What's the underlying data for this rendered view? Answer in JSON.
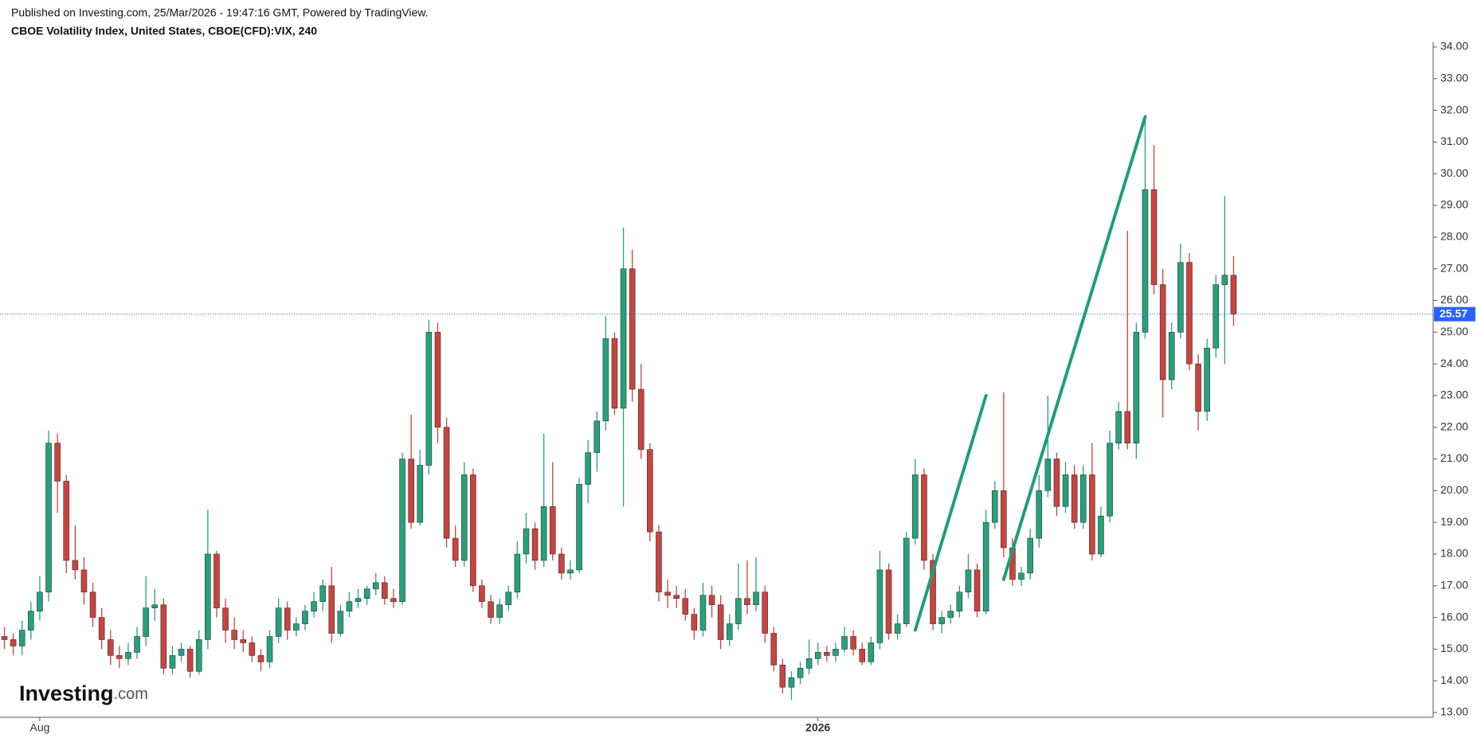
{
  "header": {
    "published": "Published on Investing.com, 25/Mar/2026 - 19:47:16 GMT, Powered by TradingView.",
    "symbol": "CBOE Volatility Index, United States, CBOE(CFD):VIX, 240"
  },
  "logo": "Investing",
  "logo_suffix": ".com",
  "chart_data": {
    "type": "candlestick",
    "categories": [
      null,
      null,
      null,
      null,
      "Aug",
      null,
      null,
      null,
      null,
      null,
      null,
      null,
      null,
      null,
      null,
      null,
      null,
      null,
      null,
      null,
      null,
      null,
      null,
      null,
      null,
      null,
      null,
      null,
      null,
      null,
      null,
      null,
      null,
      null,
      null,
      null,
      null,
      null,
      null,
      null,
      null,
      null,
      null,
      null,
      null,
      null,
      null,
      null,
      null,
      null,
      null,
      null,
      null,
      null,
      null,
      null,
      null,
      null,
      null,
      null,
      null,
      null,
      null,
      null,
      null,
      null,
      null,
      null,
      null,
      null,
      null,
      null,
      null,
      null,
      null,
      null,
      null,
      null,
      null,
      null,
      null,
      null,
      null,
      null,
      null,
      null,
      null,
      null,
      null,
      null,
      null,
      null,
      "2026",
      null,
      null,
      null,
      null,
      null,
      null,
      null,
      null,
      null,
      null,
      null,
      null,
      null,
      null,
      null,
      null,
      null,
      null,
      null,
      null,
      null,
      null,
      null,
      null,
      null,
      null,
      null,
      null,
      null,
      null,
      null,
      null,
      null,
      null,
      null,
      null,
      null,
      null,
      null,
      null,
      null,
      null,
      null,
      null,
      null,
      null,
      null
    ],
    "open": [
      15.4,
      15.3,
      15.1,
      15.6,
      16.2,
      16.8,
      21.5,
      20.3,
      17.8,
      17.5,
      16.8,
      16.0,
      15.3,
      14.8,
      14.7,
      14.9,
      15.4,
      16.3,
      16.4,
      14.4,
      14.8,
      15.0,
      14.3,
      15.3,
      18.0,
      16.3,
      15.6,
      15.3,
      15.2,
      14.8,
      14.6,
      15.4,
      16.3,
      15.6,
      15.8,
      16.2,
      16.5,
      17.0,
      15.5,
      16.2,
      16.5,
      16.6,
      16.9,
      17.1,
      16.6,
      16.5,
      21.0,
      19.0,
      20.8,
      25.0,
      22.0,
      18.5,
      17.8,
      20.5,
      17.0,
      16.5,
      16.0,
      16.4,
      16.8,
      18.0,
      18.8,
      17.8,
      19.5,
      18.0,
      17.4,
      17.5,
      20.2,
      21.2,
      22.2,
      24.8,
      22.6,
      27.0,
      23.2,
      21.3,
      18.7,
      16.8,
      16.7,
      16.6,
      16.1,
      15.6,
      16.7,
      16.4,
      15.3,
      15.8,
      16.6,
      16.4,
      16.8,
      15.5,
      14.5,
      13.8,
      14.1,
      14.4,
      14.7,
      14.9,
      14.8,
      15.0,
      15.4,
      15.0,
      14.6,
      15.2,
      17.5,
      15.5,
      15.8,
      18.5,
      20.5,
      17.8,
      15.8,
      16.0,
      16.2,
      16.8,
      17.5,
      16.2,
      19.0,
      20.0,
      18.2,
      17.2,
      17.4,
      18.5,
      20.0,
      21.0,
      19.5,
      20.5,
      19.0,
      20.5,
      18.0,
      19.2,
      21.5,
      22.5,
      21.5,
      25.0,
      29.5,
      26.5,
      23.5,
      25.0,
      27.2,
      24.0,
      22.5,
      24.5,
      26.5,
      26.8
    ],
    "high": [
      15.7,
      15.5,
      15.9,
      16.5,
      17.3,
      21.9,
      21.8,
      20.5,
      18.9,
      17.9,
      17.1,
      16.3,
      15.6,
      15.1,
      15.2,
      15.7,
      17.3,
      16.9,
      16.6,
      15.1,
      15.2,
      15.1,
      15.6,
      19.4,
      18.1,
      16.6,
      16.0,
      15.6,
      15.4,
      15.0,
      15.6,
      16.6,
      16.5,
      16.0,
      16.4,
      16.8,
      17.2,
      17.6,
      16.4,
      16.8,
      16.9,
      17.0,
      17.4,
      17.3,
      16.9,
      21.2,
      22.4,
      21.3,
      25.4,
      25.3,
      22.3,
      18.9,
      20.9,
      20.7,
      17.2,
      16.7,
      16.6,
      17.0,
      18.4,
      19.3,
      19.0,
      21.8,
      20.9,
      18.2,
      17.8,
      20.4,
      21.6,
      22.5,
      25.5,
      25.0,
      28.3,
      27.6,
      24.0,
      21.5,
      18.9,
      17.2,
      17.0,
      16.9,
      16.3,
      17.1,
      17.0,
      16.7,
      16.1,
      17.7,
      17.8,
      17.9,
      17.0,
      15.7,
      14.7,
      14.3,
      14.6,
      15.3,
      15.2,
      15.1,
      15.2,
      15.7,
      15.6,
      15.2,
      15.4,
      18.1,
      17.7,
      16.1,
      18.7,
      21.0,
      20.7,
      18.0,
      16.2,
      16.4,
      17.0,
      18.0,
      17.7,
      19.4,
      20.3,
      23.1,
      18.5,
      17.6,
      18.8,
      20.5,
      23.0,
      21.2,
      20.9,
      20.8,
      20.8,
      21.5,
      19.5,
      21.9,
      22.8,
      28.2,
      25.3,
      31.8,
      30.9,
      27.0,
      25.3,
      27.8,
      27.5,
      24.3,
      24.8,
      26.8,
      29.3,
      27.4
    ],
    "low": [
      15.0,
      14.8,
      14.8,
      15.3,
      15.9,
      16.5,
      19.3,
      17.4,
      17.2,
      16.4,
      15.7,
      15.0,
      14.5,
      14.4,
      14.5,
      14.7,
      15.1,
      15.9,
      14.2,
      14.2,
      14.6,
      14.1,
      14.2,
      15.0,
      16.0,
      15.2,
      15.0,
      14.9,
      14.6,
      14.3,
      14.4,
      15.2,
      15.3,
      15.4,
      15.6,
      16.0,
      16.2,
      15.2,
      15.4,
      16.0,
      16.3,
      16.4,
      16.7,
      16.4,
      16.3,
      16.4,
      18.8,
      18.9,
      20.5,
      21.5,
      18.2,
      17.6,
      17.6,
      16.8,
      16.3,
      15.8,
      15.8,
      16.2,
      16.6,
      17.7,
      17.5,
      17.6,
      17.8,
      17.2,
      17.2,
      17.4,
      19.6,
      20.6,
      21.9,
      22.4,
      19.5,
      22.8,
      21.0,
      18.4,
      16.5,
      16.3,
      16.3,
      15.9,
      15.3,
      15.4,
      16.0,
      15.0,
      15.1,
      15.6,
      16.1,
      16.2,
      15.2,
      14.3,
      13.6,
      13.4,
      13.9,
      14.2,
      14.5,
      14.6,
      14.6,
      14.9,
      14.8,
      14.5,
      14.5,
      15.0,
      15.3,
      15.3,
      15.7,
      18.3,
      17.5,
      15.6,
      15.5,
      15.8,
      16.0,
      16.6,
      16.0,
      16.1,
      18.8,
      17.9,
      17.0,
      17.0,
      17.2,
      18.2,
      19.8,
      19.2,
      19.3,
      18.8,
      18.8,
      17.8,
      17.9,
      19.0,
      21.3,
      21.3,
      21.0,
      24.8,
      26.2,
      22.3,
      23.2,
      24.8,
      23.8,
      21.9,
      22.2,
      24.2,
      24.0,
      25.2
    ],
    "close": [
      15.3,
      15.1,
      15.6,
      16.2,
      16.8,
      21.5,
      20.3,
      17.8,
      17.5,
      16.8,
      16.0,
      15.3,
      14.8,
      14.7,
      14.9,
      15.4,
      16.3,
      16.4,
      14.4,
      14.8,
      15.0,
      14.3,
      15.3,
      18.0,
      16.3,
      15.6,
      15.3,
      15.2,
      14.8,
      14.6,
      15.4,
      16.3,
      15.6,
      15.8,
      16.2,
      16.5,
      17.0,
      15.5,
      16.2,
      16.5,
      16.6,
      16.9,
      17.1,
      16.6,
      16.5,
      21.0,
      19.0,
      20.8,
      25.0,
      22.0,
      18.5,
      17.8,
      20.5,
      17.0,
      16.5,
      16.0,
      16.4,
      16.8,
      18.0,
      18.8,
      17.8,
      19.5,
      18.0,
      17.4,
      17.5,
      20.2,
      21.2,
      22.2,
      24.8,
      22.6,
      27.0,
      23.2,
      21.3,
      18.7,
      16.8,
      16.7,
      16.6,
      16.1,
      15.6,
      16.7,
      16.4,
      15.3,
      15.8,
      16.6,
      16.4,
      16.8,
      15.5,
      14.5,
      13.8,
      14.1,
      14.4,
      14.7,
      14.9,
      14.8,
      15.0,
      15.4,
      15.0,
      14.6,
      15.2,
      17.5,
      15.5,
      15.8,
      18.5,
      20.5,
      17.8,
      15.8,
      16.0,
      16.2,
      16.8,
      17.5,
      16.2,
      19.0,
      20.0,
      18.2,
      17.2,
      17.4,
      18.5,
      20.0,
      21.0,
      19.5,
      20.5,
      19.0,
      20.5,
      18.0,
      19.2,
      21.5,
      22.5,
      21.5,
      25.0,
      29.5,
      26.5,
      23.5,
      25.0,
      27.2,
      24.0,
      22.5,
      24.5,
      26.5,
      26.8,
      25.57
    ],
    "up_color": "#26a17b",
    "down_color": "#c9433f",
    "last_price": 25.57,
    "last_price_color": "#2962ff",
    "trendlines": [
      {
        "color": "#1e9e78",
        "points": [
          [
            103,
            15.6
          ],
          [
            111,
            23.0
          ]
        ]
      },
      {
        "color": "#1e9e78",
        "points": [
          [
            113,
            17.2
          ],
          [
            129,
            31.8
          ]
        ]
      }
    ],
    "ylim": [
      12.85,
      34.15
    ],
    "yticks": [
      {
        "value": 13,
        "label": "13.00"
      },
      {
        "value": 14,
        "label": "14.00"
      },
      {
        "value": 15,
        "label": "15.00"
      },
      {
        "value": 16,
        "label": "16.00"
      },
      {
        "value": 17,
        "label": "17.00"
      },
      {
        "value": 18,
        "label": "18.00"
      },
      {
        "value": 19,
        "label": "19.00"
      },
      {
        "value": 20,
        "label": "20.00"
      },
      {
        "value": 21,
        "label": "21.00"
      },
      {
        "value": 22,
        "label": "22.00"
      },
      {
        "value": 23,
        "label": "23.00"
      },
      {
        "value": 24,
        "label": "24.00"
      },
      {
        "value": 25,
        "label": "25.00"
      },
      {
        "value": 26,
        "label": "26.00"
      },
      {
        "value": 27,
        "label": "27.00"
      },
      {
        "value": 28,
        "label": "28.00"
      },
      {
        "value": 29,
        "label": "29.00"
      },
      {
        "value": 30,
        "label": "30.00"
      },
      {
        "value": 31,
        "label": "31.00"
      },
      {
        "value": 32,
        "label": "32.00"
      },
      {
        "value": 33,
        "label": "33.00"
      },
      {
        "value": 34,
        "label": "34.00"
      }
    ],
    "grid": false
  }
}
